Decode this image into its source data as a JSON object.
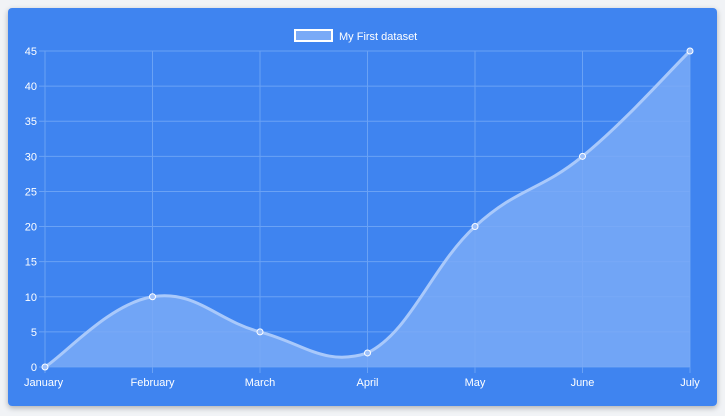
{
  "colors": {
    "background": "#3f84f0",
    "grid": "#6aa2f5",
    "area_fill": "#7aaaf7",
    "line": "#a9c9fb",
    "text": "#ffffff",
    "point": "#9dc0fa"
  },
  "chart_data": {
    "type": "area",
    "categories": [
      "January",
      "February",
      "March",
      "April",
      "May",
      "June",
      "July"
    ],
    "series": [
      {
        "name": "My First dataset",
        "values": [
          0,
          10,
          5,
          2,
          20,
          30,
          45
        ]
      }
    ],
    "yticks": [
      "0",
      "5",
      "10",
      "15",
      "20",
      "25",
      "30",
      "35",
      "40",
      "45"
    ],
    "ylim": [
      0,
      45
    ],
    "grid": true,
    "legend_position": "top-center",
    "curve": "smooth"
  }
}
